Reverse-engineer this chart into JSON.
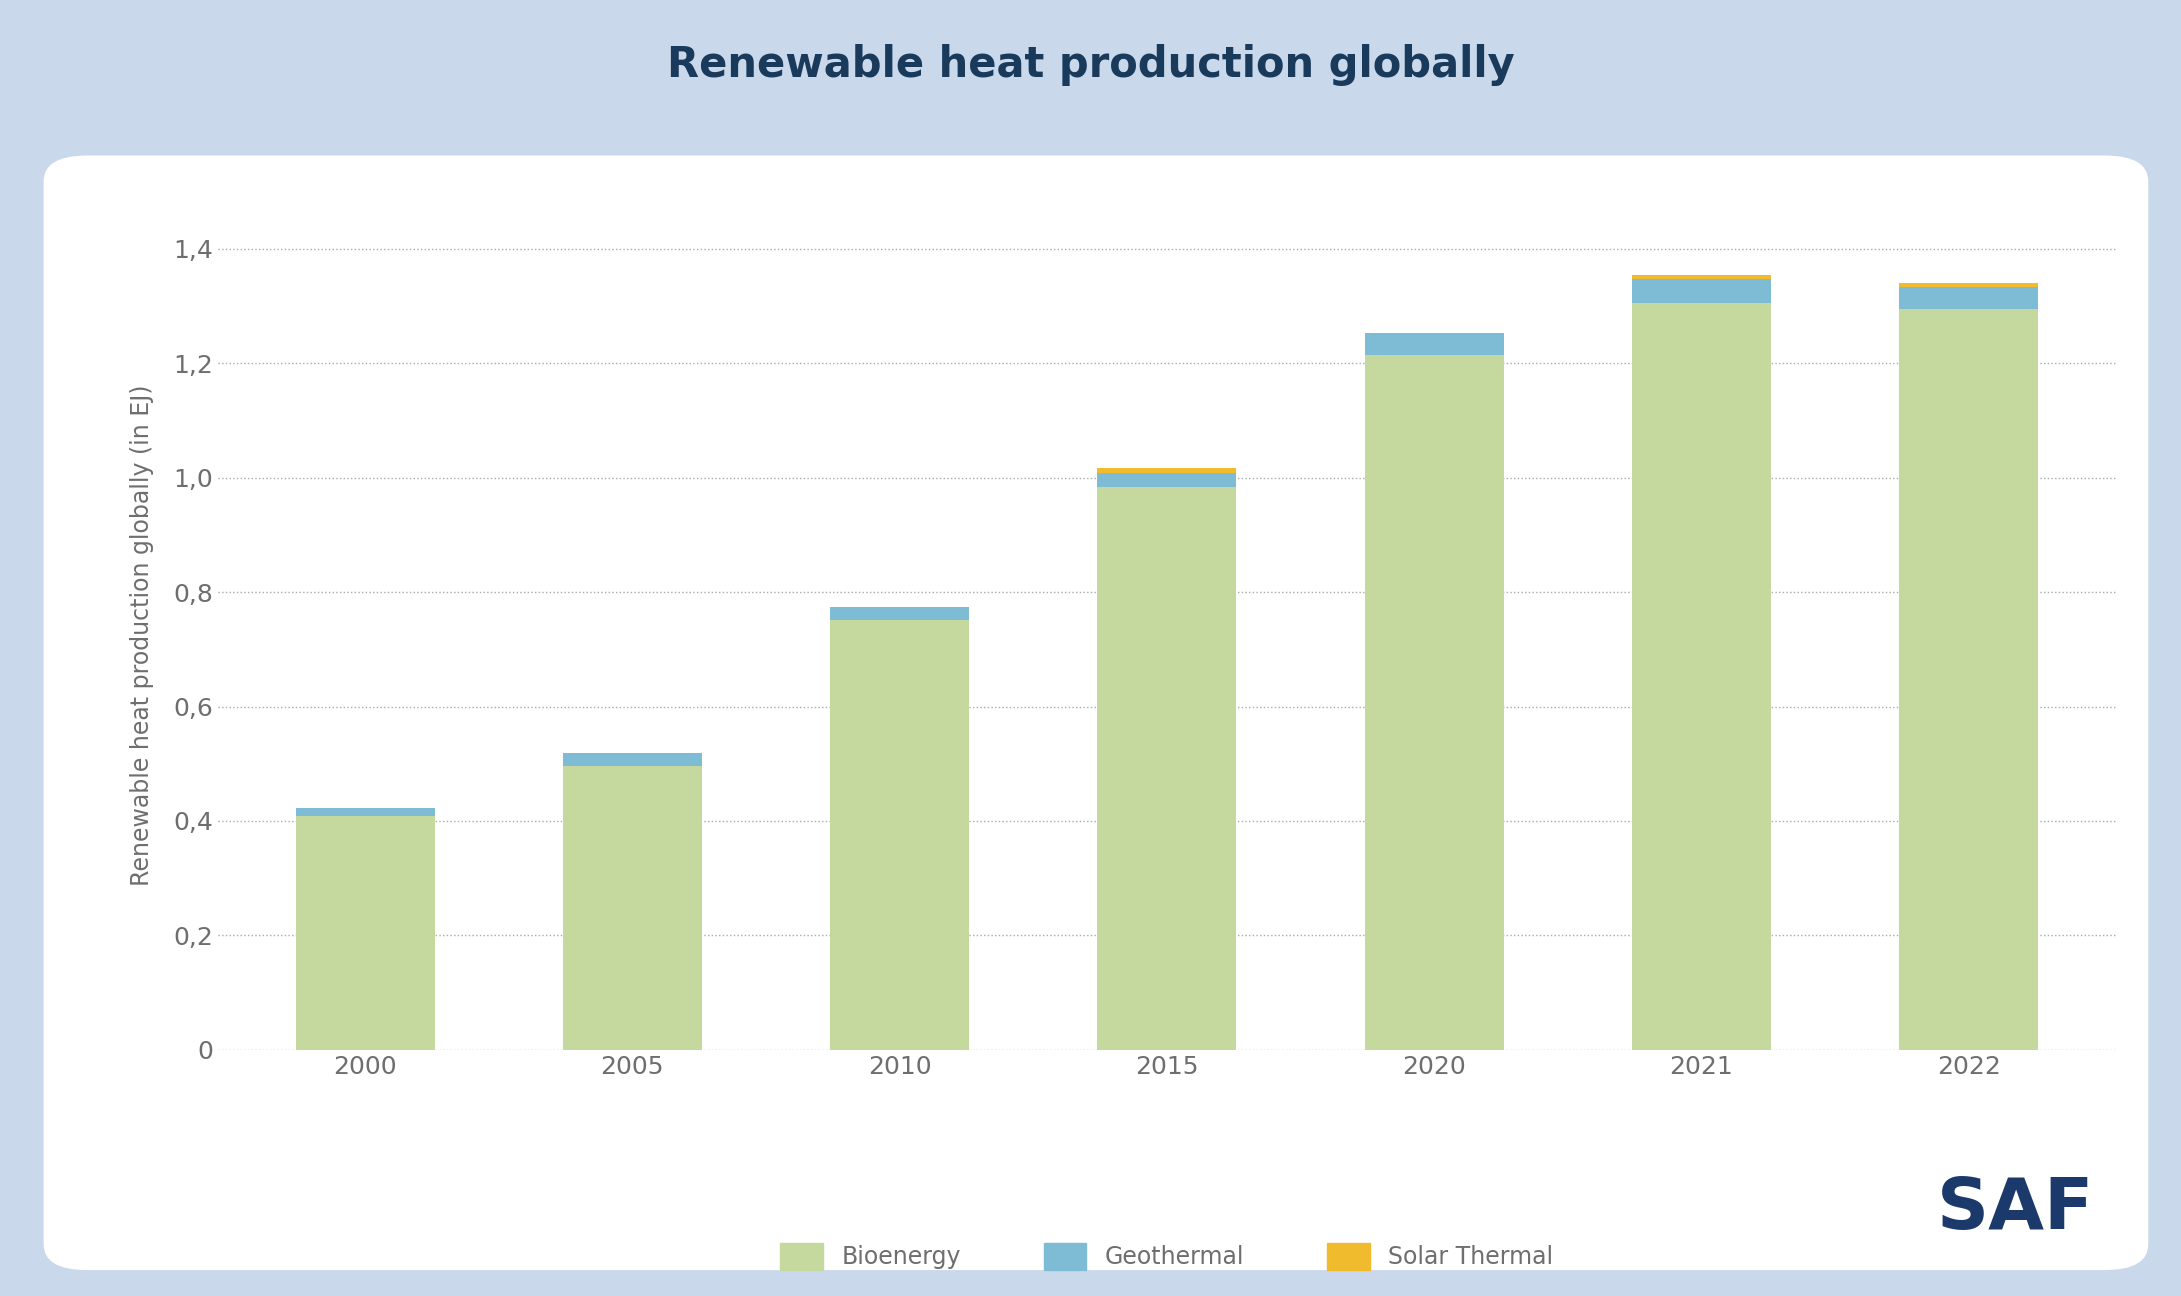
{
  "title": "Renewable heat production globally",
  "ylabel": "Renewable heat production globally (in EJ)",
  "categories": [
    "2000",
    "2005",
    "2010",
    "2015",
    "2020",
    "2021",
    "2022"
  ],
  "bioenergy": [
    0.408,
    0.496,
    0.752,
    0.984,
    1.215,
    1.305,
    1.295
  ],
  "geothermal": [
    0.015,
    0.022,
    0.022,
    0.025,
    0.038,
    0.042,
    0.038
  ],
  "solar_thermal": [
    0.0,
    0.0,
    0.0,
    0.008,
    0.0,
    0.008,
    0.007
  ],
  "ylim": [
    0,
    1.45
  ],
  "yticks": [
    0,
    0.2,
    0.4,
    0.6,
    0.8,
    1.0,
    1.2,
    1.4
  ],
  "ytick_labels": [
    "0",
    "0,2",
    "0,4",
    "0,6",
    "0,8",
    "1,0",
    "1,2",
    "1,4"
  ],
  "bioenergy_color": "#c5d89d",
  "geothermal_color": "#7dbcd4",
  "solar_thermal_color": "#f0bc2e",
  "background_outer": "#c9d9eb",
  "background_inner": "#ffffff",
  "title_color": "#1a3a5c",
  "axis_label_color": "#6e6e6e",
  "tick_color": "#6e6e6e",
  "grid_color": "#aaaaaa",
  "bar_width": 0.52,
  "legend_labels": [
    "Bioenergy",
    "Geothermal",
    "Solar Thermal"
  ],
  "saf_color": "#1b3a6b",
  "title_fontsize": 30,
  "label_fontsize": 17,
  "tick_fontsize": 18,
  "legend_fontsize": 17
}
